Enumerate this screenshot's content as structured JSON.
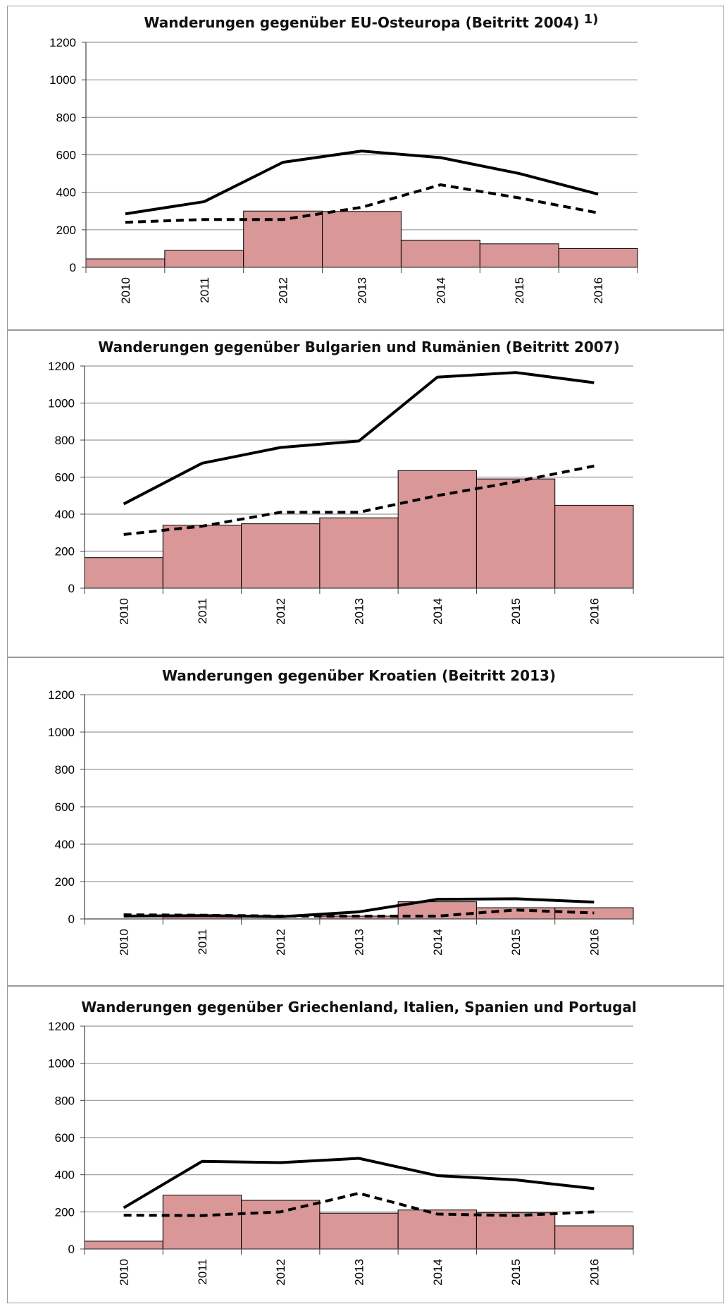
{
  "chart_data": [
    {
      "type": "bar+line",
      "title": "Wanderungen gegenüber EU-Osteuropa (Beitritt 2004)",
      "title_footnote": "1)",
      "categories": [
        "2010",
        "2011",
        "2012",
        "2013",
        "2014",
        "2015",
        "2016"
      ],
      "ylim": [
        0,
        1200
      ],
      "yticks": [
        "0",
        "200",
        "400",
        "600",
        "800",
        "1000",
        "1200"
      ],
      "grid": true,
      "series": [
        {
          "kind": "bar",
          "values": [
            45,
            90,
            300,
            298,
            145,
            125,
            100
          ]
        },
        {
          "kind": "line",
          "style": "solid",
          "values": [
            285,
            350,
            560,
            620,
            585,
            500,
            390
          ]
        },
        {
          "kind": "line",
          "style": "dashed",
          "values": [
            240,
            255,
            255,
            320,
            440,
            370,
            290
          ]
        }
      ]
    },
    {
      "type": "bar+line",
      "title": "Wanderungen gegenüber Bulgarien und Rumänien (Beitritt 2007)",
      "categories": [
        "2010",
        "2011",
        "2012",
        "2013",
        "2014",
        "2015",
        "2016"
      ],
      "ylim": [
        0,
        1200
      ],
      "yticks": [
        "0",
        "200",
        "400",
        "600",
        "800",
        "1000",
        "1200"
      ],
      "grid": true,
      "series": [
        {
          "kind": "bar",
          "values": [
            165,
            340,
            348,
            380,
            635,
            590,
            448
          ]
        },
        {
          "kind": "line",
          "style": "solid",
          "values": [
            455,
            675,
            760,
            795,
            1140,
            1165,
            1110
          ]
        },
        {
          "kind": "line",
          "style": "dashed",
          "values": [
            290,
            335,
            410,
            410,
            500,
            575,
            660
          ]
        }
      ]
    },
    {
      "type": "bar+line",
      "title": "Wanderungen gegenüber Kroatien (Beitritt 2013)",
      "categories": [
        "2010",
        "2011",
        "2012",
        "2013",
        "2014",
        "2015",
        "2016"
      ],
      "ylim": [
        0,
        1200
      ],
      "yticks": [
        "0",
        "200",
        "400",
        "600",
        "800",
        "1000",
        "1200"
      ],
      "grid": true,
      "series": [
        {
          "kind": "bar",
          "values": [
            0,
            12,
            0,
            15,
            92,
            60,
            60
          ]
        },
        {
          "kind": "line",
          "style": "solid",
          "values": [
            15,
            18,
            12,
            38,
            105,
            108,
            90
          ]
        },
        {
          "kind": "line",
          "style": "dashed",
          "values": [
            22,
            20,
            15,
            15,
            15,
            48,
            32
          ]
        }
      ]
    },
    {
      "type": "bar+line",
      "title": "Wanderungen gegenüber Griechenland, Italien, Spanien und Portugal",
      "categories": [
        "2010",
        "2011",
        "2012",
        "2013",
        "2014",
        "2015",
        "2016"
      ],
      "ylim": [
        0,
        1200
      ],
      "yticks": [
        "0",
        "200",
        "400",
        "600",
        "800",
        "1000",
        "1200"
      ],
      "grid": true,
      "series": [
        {
          "kind": "bar",
          "values": [
            42,
            290,
            262,
            193,
            210,
            195,
            125
          ]
        },
        {
          "kind": "line",
          "style": "solid",
          "values": [
            222,
            472,
            465,
            488,
            395,
            372,
            325
          ]
        },
        {
          "kind": "line",
          "style": "dashed",
          "values": [
            182,
            180,
            200,
            300,
            188,
            180,
            200
          ]
        }
      ]
    }
  ],
  "colors": {
    "bar_fill": "#d99797",
    "bar_stroke": "#000000",
    "line": "#000000",
    "grid": "#9a9a9a",
    "panel_border": "#9a9a9a"
  }
}
